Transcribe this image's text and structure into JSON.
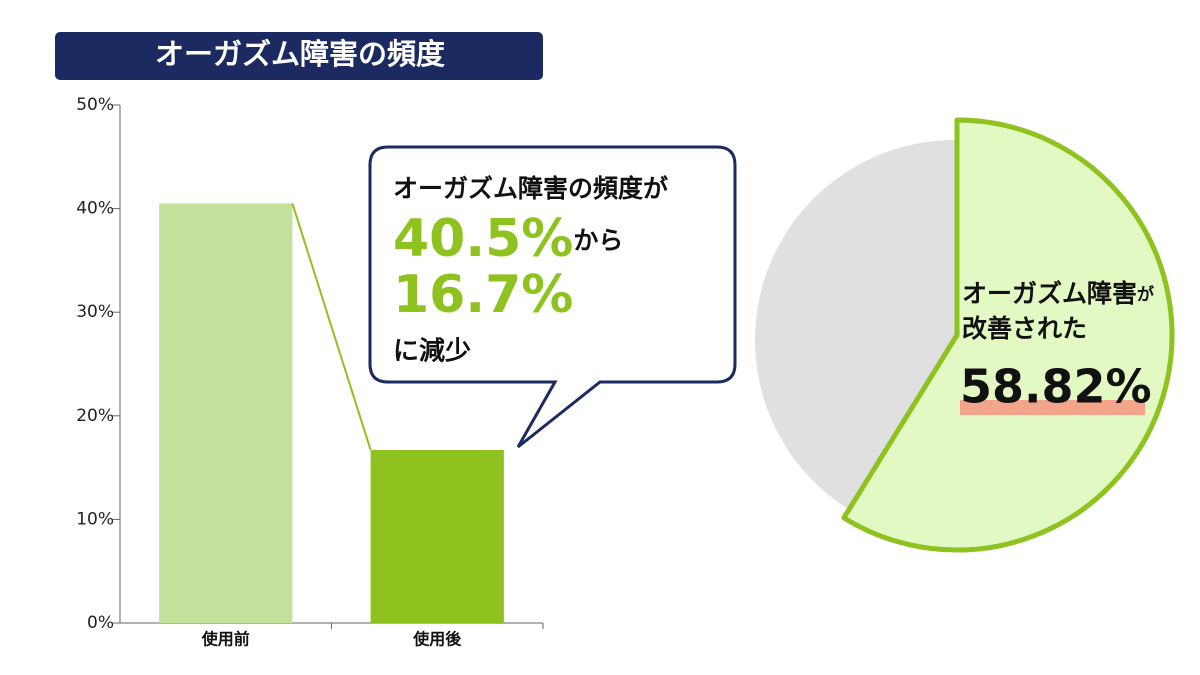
{
  "title": "オーガズム障害の頻度",
  "chart_data": [
    {
      "type": "bar",
      "categories": [
        "使用前",
        "使用後"
      ],
      "values": [
        40.5,
        16.7
      ],
      "colors": [
        "#c5e09a",
        "#8dc21f"
      ],
      "ylim": [
        0,
        50
      ],
      "yticks": [
        {
          "value": 0,
          "label": "0%"
        },
        {
          "value": 10,
          "label": "10%"
        },
        {
          "value": 20,
          "label": "20%"
        },
        {
          "value": 30,
          "label": "30%"
        },
        {
          "value": 40,
          "label": "40%"
        },
        {
          "value": 50,
          "label": "50%"
        }
      ],
      "callout": {
        "heading": "オーガズム障害の頻度が",
        "from": "40.5%",
        "from_suffix": "から",
        "to": "16.7%",
        "ending": "に減少"
      }
    },
    {
      "type": "pie",
      "values": [
        58.82,
        41.18
      ],
      "value_labels": [
        "58.82%",
        null
      ],
      "colors": [
        "#e3f9c4",
        "#e0e0e0"
      ],
      "label_main": "オーガズム障害",
      "label_particle": "が",
      "label_line2": "改善された"
    }
  ]
}
